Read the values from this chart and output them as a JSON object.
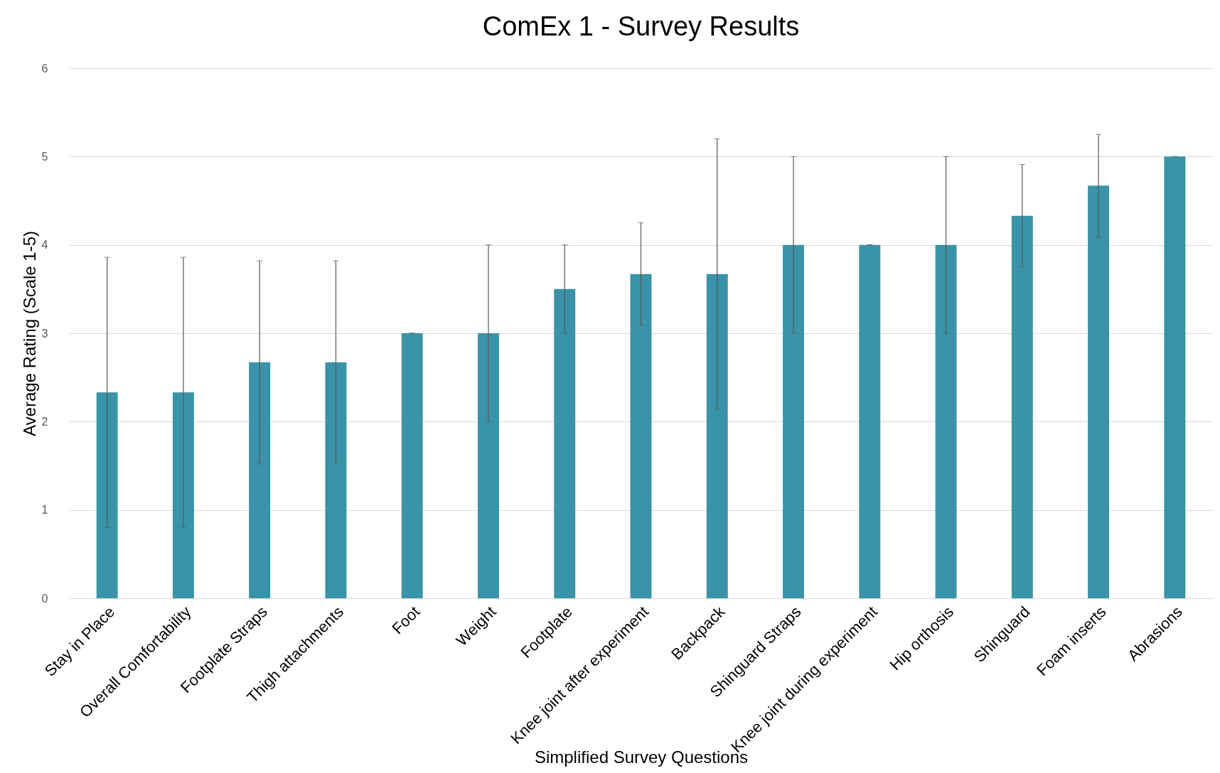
{
  "chart_data": {
    "type": "bar",
    "title": "ComEx 1 - Survey Results",
    "xlabel": "Simplified Survey Questions",
    "ylabel": "Average Rating (Scale 1-5)",
    "categories": [
      "Stay in Place",
      "Overall Comfortability",
      "Footplate Straps",
      "Thigh attachments",
      "Foot",
      "Weight",
      "Footplate",
      "Knee joint after experiment",
      "Backpack",
      "Shinguard Straps",
      "Knee joint during experiment",
      "Hip orthosis",
      "Shinguard",
      "Foam inserts",
      "Abrasions"
    ],
    "values": [
      2.33,
      2.33,
      2.67,
      2.67,
      3,
      3,
      3.5,
      3.67,
      3.67,
      4,
      4,
      4,
      4.33,
      4.67,
      5
    ],
    "errors": [
      1.53,
      1.53,
      1.15,
      1.15,
      0,
      1,
      0.5,
      0.58,
      1.53,
      1,
      0,
      1,
      0.58,
      0.58,
      0
    ],
    "color": "#3a93a8",
    "ylim": [
      0,
      6
    ],
    "yticks": [
      0,
      1,
      2,
      3,
      4,
      5,
      6
    ],
    "grid": "y"
  }
}
